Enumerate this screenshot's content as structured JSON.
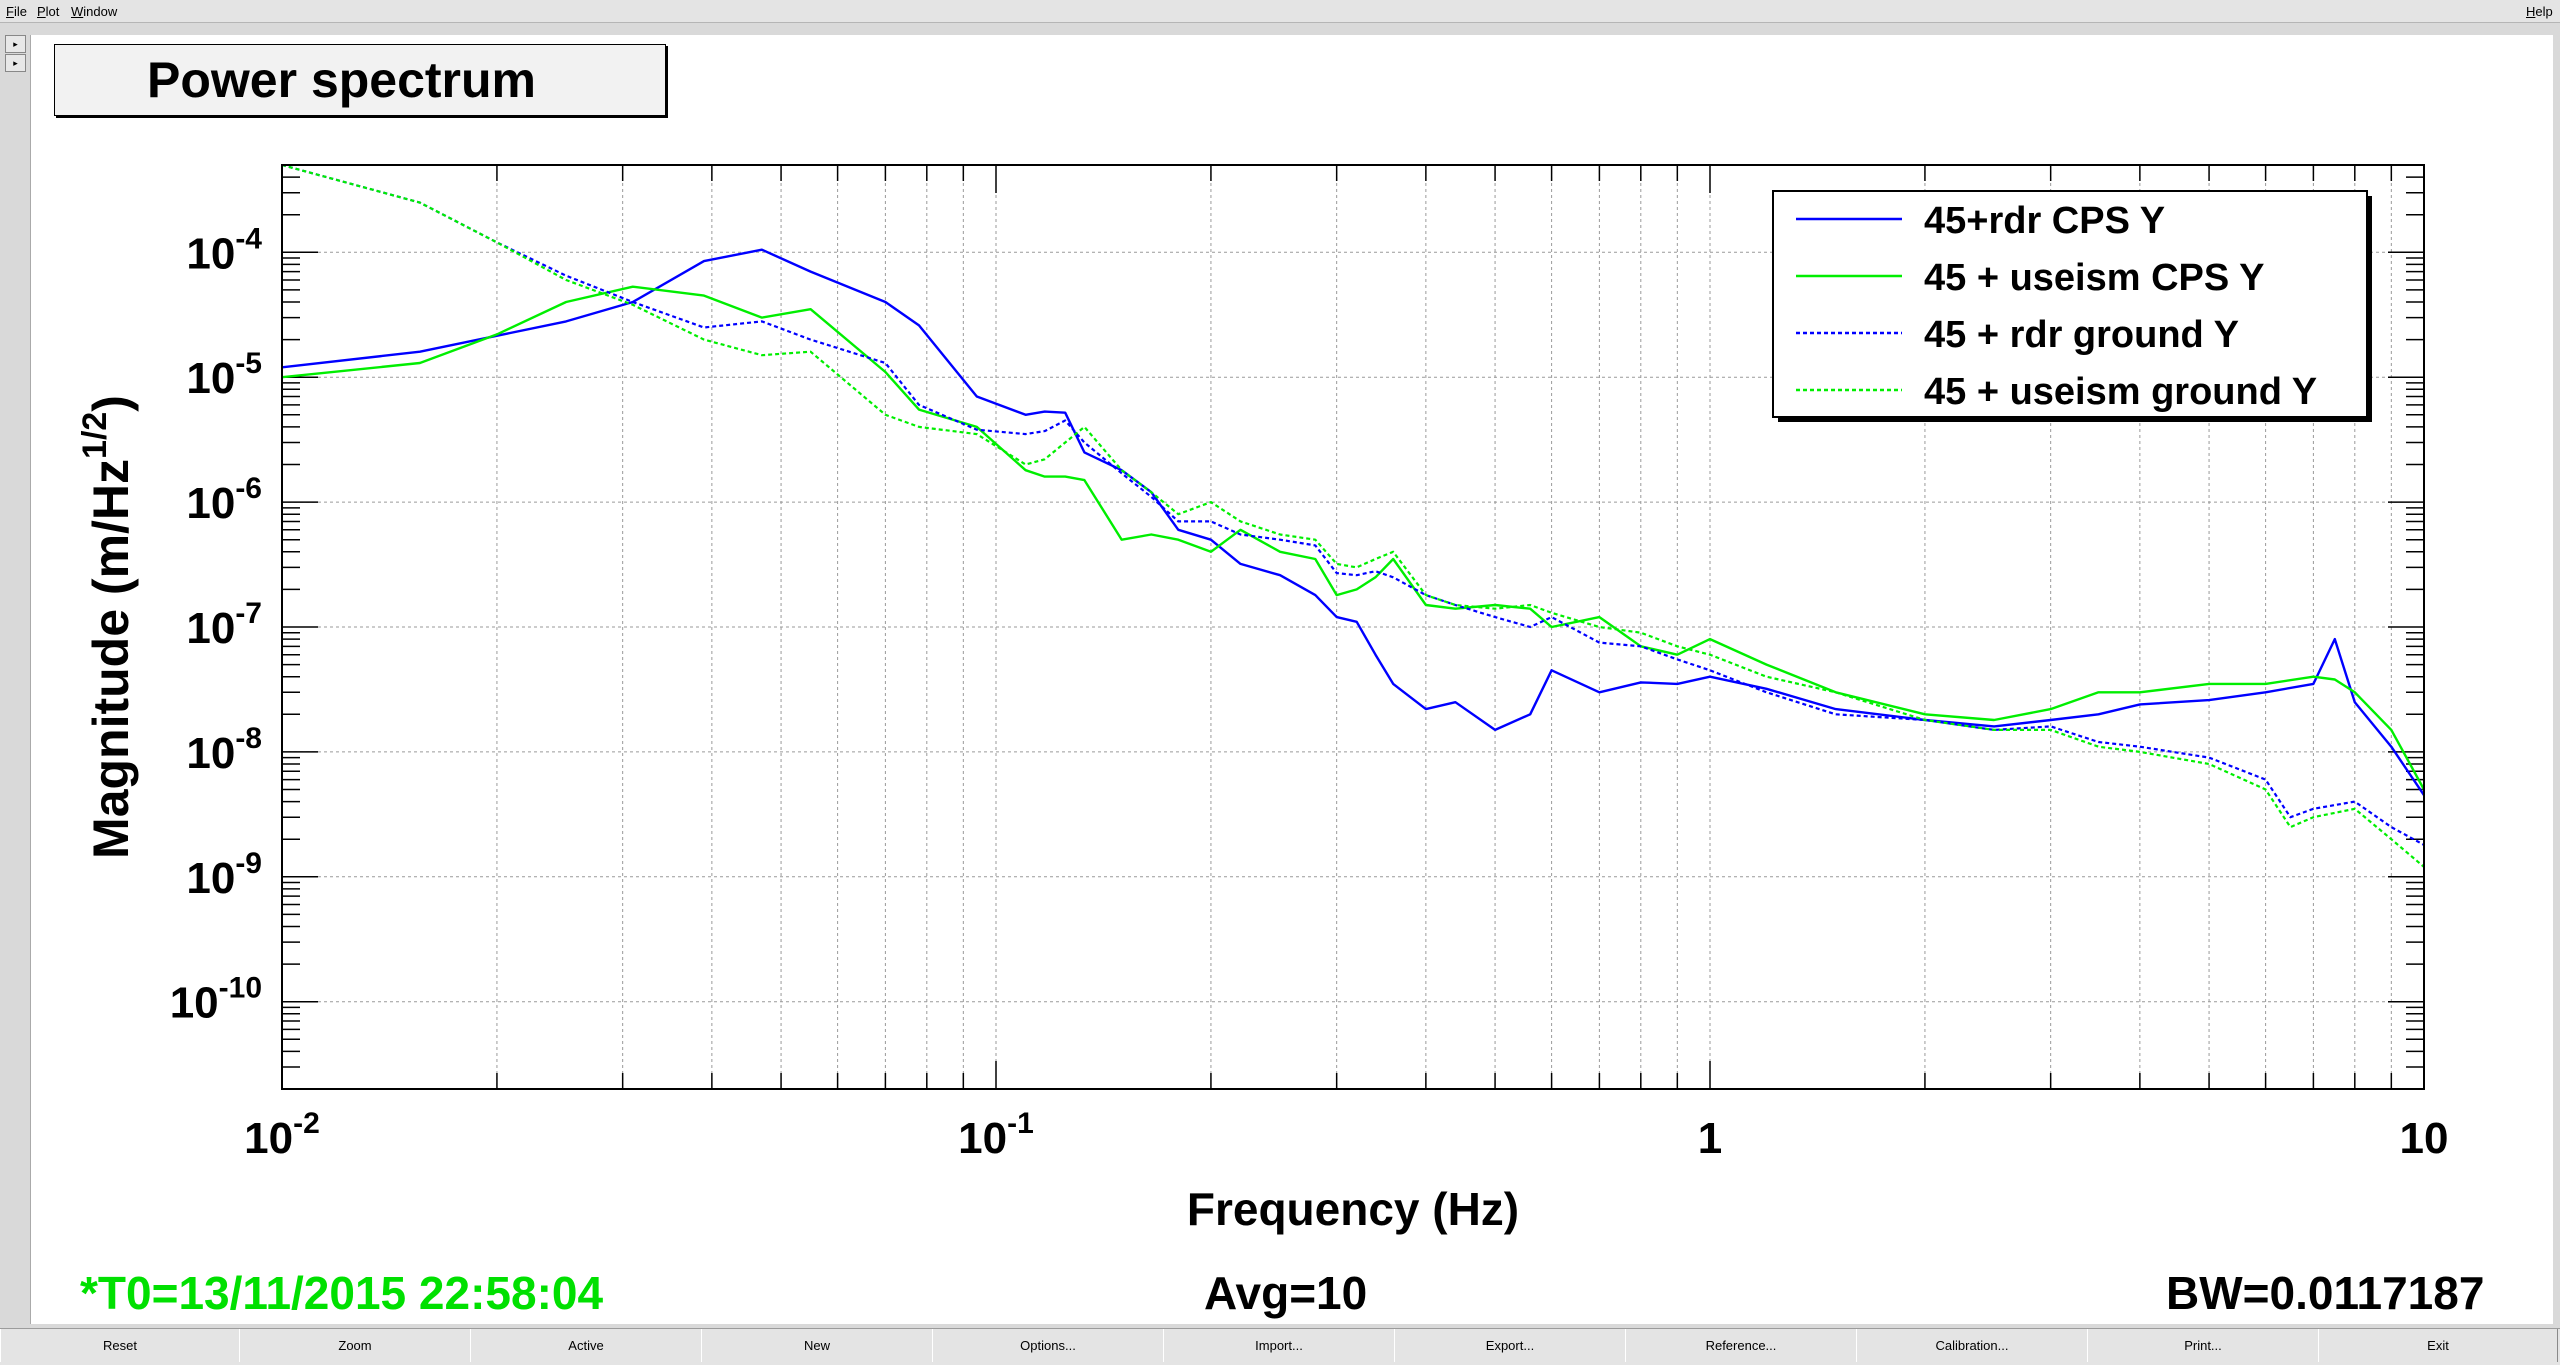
{
  "menu": {
    "file": "File",
    "plot": "Plot",
    "window": "Window",
    "help": "Help"
  },
  "side_buttons": [
    "▸",
    "▸"
  ],
  "title": "Power spectrum",
  "chart_data": {
    "type": "line",
    "xlabel": "Frequency (Hz)",
    "ylabel": "Magnitude (m/Hz",
    "ylabel_sup": "1/2",
    "ylabel_end": ")",
    "x_scale": "log",
    "y_scale": "log",
    "xlim": [
      0.01,
      10
    ],
    "ylim": [
      2e-11,
      0.0005
    ],
    "grid": true,
    "legend_position": "top-right",
    "x_ticks": [
      {
        "value": 0.01,
        "base": "10",
        "exp": "-2"
      },
      {
        "value": 0.1,
        "base": "10",
        "exp": "-1"
      },
      {
        "value": 1,
        "base": "1",
        "exp": ""
      },
      {
        "value": 10,
        "base": "10",
        "exp": ""
      }
    ],
    "y_ticks": [
      {
        "value": 0.0001,
        "base": "10",
        "exp": "-4"
      },
      {
        "value": 1e-05,
        "base": "10",
        "exp": "-5"
      },
      {
        "value": 1e-06,
        "base": "10",
        "exp": "-6"
      },
      {
        "value": 1e-07,
        "base": "10",
        "exp": "-7"
      },
      {
        "value": 1e-08,
        "base": "10",
        "exp": "-8"
      },
      {
        "value": 1e-09,
        "base": "10",
        "exp": "-9"
      },
      {
        "value": 1e-10,
        "base": "10",
        "exp": "-10"
      }
    ],
    "series": [
      {
        "name": "45+rdr CPS Y",
        "color": "#0000ff",
        "dash": false,
        "x": [
          0.01,
          0.0156,
          0.025,
          0.031,
          0.039,
          0.047,
          0.055,
          0.07,
          0.078,
          0.094,
          0.11,
          0.117,
          0.125,
          0.133,
          0.15,
          0.165,
          0.18,
          0.2,
          0.22,
          0.25,
          0.28,
          0.3,
          0.32,
          0.34,
          0.36,
          0.4,
          0.44,
          0.5,
          0.56,
          0.6,
          0.7,
          0.8,
          0.9,
          1.0,
          1.2,
          1.5,
          2.0,
          2.5,
          3.0,
          3.5,
          4.0,
          5.0,
          6.0,
          7.0,
          7.5,
          8.0,
          9.0,
          10.0
        ],
        "y": [
          1.2e-05,
          1.6e-05,
          2.8e-05,
          4e-05,
          8.5e-05,
          0.000105,
          7e-05,
          4e-05,
          2.6e-05,
          7e-06,
          5e-06,
          5.3e-06,
          5.2e-06,
          2.5e-06,
          1.8e-06,
          1.2e-06,
          6e-07,
          5e-07,
          3.2e-07,
          2.6e-07,
          1.8e-07,
          1.2e-07,
          1.1e-07,
          6e-08,
          3.5e-08,
          2.2e-08,
          2.5e-08,
          1.5e-08,
          2e-08,
          4.5e-08,
          3e-08,
          3.6e-08,
          3.5e-08,
          4e-08,
          3.2e-08,
          2.2e-08,
          1.8e-08,
          1.6e-08,
          1.8e-08,
          2e-08,
          2.4e-08,
          2.6e-08,
          3e-08,
          3.5e-08,
          8e-08,
          2.5e-08,
          1.1e-08,
          4.5e-09
        ]
      },
      {
        "name": "45 + useism CPS Y",
        "color": "#00ee00",
        "dash": false,
        "x": [
          0.01,
          0.0156,
          0.02,
          0.025,
          0.031,
          0.039,
          0.047,
          0.055,
          0.07,
          0.078,
          0.094,
          0.11,
          0.117,
          0.125,
          0.133,
          0.15,
          0.165,
          0.18,
          0.2,
          0.22,
          0.25,
          0.28,
          0.3,
          0.32,
          0.34,
          0.36,
          0.4,
          0.44,
          0.5,
          0.56,
          0.6,
          0.7,
          0.8,
          0.9,
          1.0,
          1.2,
          1.5,
          2.0,
          2.5,
          3.0,
          3.5,
          4.0,
          5.0,
          6.0,
          7.0,
          7.5,
          8.0,
          9.0,
          10.0
        ],
        "y": [
          1e-05,
          1.3e-05,
          2.2e-05,
          4e-05,
          5.3e-05,
          4.5e-05,
          3e-05,
          3.5e-05,
          1.1e-05,
          5.5e-06,
          4e-06,
          1.8e-06,
          1.6e-06,
          1.6e-06,
          1.5e-06,
          5e-07,
          5.5e-07,
          5e-07,
          4e-07,
          6e-07,
          4e-07,
          3.5e-07,
          1.8e-07,
          2e-07,
          2.5e-07,
          3.5e-07,
          1.5e-07,
          1.4e-07,
          1.5e-07,
          1.4e-07,
          1e-07,
          1.2e-07,
          7e-08,
          6e-08,
          8e-08,
          5e-08,
          3e-08,
          2e-08,
          1.8e-08,
          2.2e-08,
          3e-08,
          3e-08,
          3.5e-08,
          3.5e-08,
          4e-08,
          3.8e-08,
          3e-08,
          1.5e-08,
          5e-09
        ]
      },
      {
        "name": "45 + rdr ground Y",
        "color": "#0000ff",
        "dash": true,
        "x": [
          0.01,
          0.0156,
          0.02,
          0.025,
          0.031,
          0.039,
          0.047,
          0.055,
          0.07,
          0.078,
          0.094,
          0.11,
          0.117,
          0.125,
          0.133,
          0.15,
          0.165,
          0.18,
          0.2,
          0.22,
          0.25,
          0.28,
          0.3,
          0.32,
          0.34,
          0.36,
          0.4,
          0.44,
          0.5,
          0.56,
          0.6,
          0.7,
          0.8,
          0.9,
          1.0,
          1.2,
          1.5,
          2.0,
          2.5,
          3.0,
          3.5,
          4.0,
          5.0,
          6.0,
          6.5,
          7.0,
          8.0,
          9.0,
          10.0
        ],
        "y": [
          0.0005,
          0.00025,
          0.00012,
          6.5e-05,
          4e-05,
          2.5e-05,
          2.8e-05,
          2e-05,
          1.3e-05,
          6e-06,
          3.8e-06,
          3.5e-06,
          3.7e-06,
          4.5e-06,
          3e-06,
          1.7e-06,
          1.1e-06,
          7e-07,
          7e-07,
          5.5e-07,
          5e-07,
          4.5e-07,
          2.7e-07,
          2.6e-07,
          2.8e-07,
          2.5e-07,
          1.8e-07,
          1.5e-07,
          1.2e-07,
          1e-07,
          1.2e-07,
          7.5e-08,
          7e-08,
          5.5e-08,
          4.5e-08,
          3e-08,
          2e-08,
          1.8e-08,
          1.5e-08,
          1.6e-08,
          1.2e-08,
          1.1e-08,
          9e-09,
          6e-09,
          3e-09,
          3.5e-09,
          4e-09,
          2.5e-09,
          1.8e-09
        ]
      },
      {
        "name": "45 + useism ground Y",
        "color": "#00ee00",
        "dash": true,
        "x": [
          0.01,
          0.0156,
          0.02,
          0.025,
          0.031,
          0.039,
          0.047,
          0.055,
          0.07,
          0.078,
          0.094,
          0.11,
          0.117,
          0.125,
          0.133,
          0.15,
          0.165,
          0.18,
          0.2,
          0.22,
          0.25,
          0.28,
          0.3,
          0.32,
          0.34,
          0.36,
          0.4,
          0.44,
          0.5,
          0.56,
          0.6,
          0.7,
          0.8,
          0.9,
          1.0,
          1.2,
          1.5,
          2.0,
          2.5,
          3.0,
          3.5,
          4.0,
          5.0,
          6.0,
          6.5,
          7.0,
          8.0,
          9.0,
          10.0
        ],
        "y": [
          0.0005,
          0.00025,
          0.00012,
          6e-05,
          3.8e-05,
          2e-05,
          1.5e-05,
          1.6e-05,
          5e-06,
          4e-06,
          3.5e-06,
          2e-06,
          2.2e-06,
          3e-06,
          4e-06,
          1.8e-06,
          1.2e-06,
          8e-07,
          1e-06,
          7e-07,
          5.5e-07,
          5e-07,
          3.2e-07,
          3e-07,
          3.5e-07,
          4e-07,
          1.8e-07,
          1.5e-07,
          1.4e-07,
          1.5e-07,
          1.3e-07,
          1e-07,
          9e-08,
          7e-08,
          6e-08,
          4e-08,
          3e-08,
          1.8e-08,
          1.5e-08,
          1.5e-08,
          1.1e-08,
          1e-08,
          8e-09,
          5e-09,
          2.5e-09,
          3e-09,
          3.5e-09,
          2e-09,
          1.2e-09
        ]
      }
    ]
  },
  "status": {
    "t0": "*T0=13/11/2015 22:58:04",
    "t0_color": "#00e000",
    "avg": "Avg=10",
    "bw": "BW=0.0117187"
  },
  "buttons": [
    "Reset",
    "Zoom",
    "Active",
    "New",
    "Options...",
    "Import...",
    "Export...",
    "Reference...",
    "Calibration...",
    "Print...",
    "Exit"
  ]
}
